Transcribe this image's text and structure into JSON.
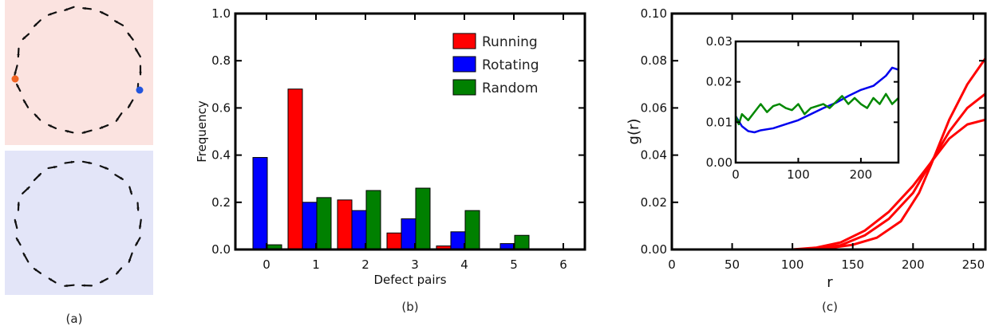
{
  "panels": {
    "a": {
      "caption": "(a)",
      "top_color": "#fbe3e0",
      "bottom_color": "#e3e5f8",
      "defect_colors": [
        "#f26322",
        "#2255dd"
      ]
    },
    "b": {
      "caption": "(b)"
    },
    "c": {
      "caption": "(c)"
    }
  },
  "chart_data": [
    {
      "type": "bar",
      "xlabel": "Defect pairs",
      "ylabel": "Frequency",
      "ylim": [
        0,
        1.0
      ],
      "yticks": [
        "0.0",
        "0.2",
        "0.4",
        "0.6",
        "0.8",
        "1.0"
      ],
      "xticks": [
        "0",
        "1",
        "2",
        "3",
        "4",
        "5",
        "6"
      ],
      "categories": [
        0,
        1,
        2,
        3,
        4,
        5,
        6
      ],
      "legend_position": "top-right",
      "series": [
        {
          "name": "Running",
          "color": "#ff0000",
          "values": [
            0.0,
            0.68,
            0.21,
            0.07,
            0.015,
            0.0,
            0.0
          ]
        },
        {
          "name": "Rotating",
          "color": "#0000ff",
          "values": [
            0.39,
            0.2,
            0.165,
            0.13,
            0.075,
            0.025,
            0.0
          ]
        },
        {
          "name": "Random",
          "color": "#008000",
          "values": [
            0.02,
            0.22,
            0.25,
            0.26,
            0.165,
            0.06,
            0.0
          ]
        }
      ]
    },
    {
      "type": "line",
      "xlabel": "r",
      "ylabel": "g(r)",
      "xlim": [
        0,
        260
      ],
      "ylim": [
        0,
        0.1
      ],
      "xticks": [
        "0",
        "50",
        "100",
        "150",
        "200",
        "250"
      ],
      "yticks": [
        "0.00",
        "0.02",
        "0.04",
        "0.06",
        "0.08",
        "0.10"
      ],
      "series": [
        {
          "color": "#ff0000",
          "x": [
            100,
            120,
            140,
            160,
            180,
            200,
            215,
            230,
            245,
            260
          ],
          "y": [
            0.0,
            0.0008,
            0.003,
            0.008,
            0.016,
            0.027,
            0.037,
            0.047,
            0.053,
            0.055
          ]
        },
        {
          "color": "#ff0000",
          "x": [
            100,
            120,
            140,
            160,
            180,
            200,
            215,
            230,
            245,
            260
          ],
          "y": [
            0.0,
            0.0004,
            0.0018,
            0.006,
            0.013,
            0.024,
            0.037,
            0.05,
            0.06,
            0.066
          ]
        },
        {
          "color": "#ff0000",
          "x": [
            110,
            130,
            150,
            170,
            190,
            205,
            215,
            230,
            245,
            260
          ],
          "y": [
            0.0,
            0.0006,
            0.002,
            0.005,
            0.012,
            0.024,
            0.036,
            0.055,
            0.07,
            0.081
          ]
        }
      ],
      "inset": {
        "xlim": [
          0,
          260
        ],
        "ylim": [
          0,
          0.03
        ],
        "xticks": [
          "0",
          "100",
          "200"
        ],
        "yticks": [
          "0.00",
          "0.01",
          "0.02",
          "0.03"
        ],
        "series": [
          {
            "color": "#0000ee",
            "x": [
              0,
              10,
              20,
              30,
              40,
              60,
              80,
              100,
              120,
              140,
              160,
              180,
              200,
              220,
              240,
              250,
              260
            ],
            "y": [
              0.0115,
              0.009,
              0.0078,
              0.0075,
              0.008,
              0.0085,
              0.0095,
              0.0105,
              0.012,
              0.0135,
              0.0148,
              0.0165,
              0.018,
              0.019,
              0.0215,
              0.0235,
              0.023
            ]
          },
          {
            "color": "#008800",
            "x": [
              0,
              5,
              10,
              20,
              30,
              40,
              50,
              60,
              70,
              80,
              90,
              100,
              110,
              120,
              130,
              140,
              150,
              160,
              170,
              180,
              190,
              200,
              210,
              220,
              230,
              240,
              250,
              260
            ],
            "y": [
              0.0115,
              0.0095,
              0.012,
              0.0105,
              0.0125,
              0.0145,
              0.0125,
              0.014,
              0.0145,
              0.0135,
              0.013,
              0.0145,
              0.012,
              0.0135,
              0.014,
              0.0145,
              0.0135,
              0.015,
              0.0165,
              0.0145,
              0.016,
              0.0145,
              0.0135,
              0.016,
              0.0145,
              0.017,
              0.0145,
              0.016
            ]
          }
        ]
      }
    }
  ]
}
